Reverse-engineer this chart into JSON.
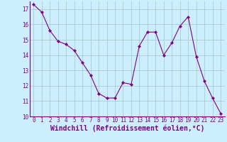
{
  "x": [
    0,
    1,
    2,
    3,
    4,
    5,
    6,
    7,
    8,
    9,
    10,
    11,
    12,
    13,
    14,
    15,
    16,
    17,
    18,
    19,
    20,
    21,
    22,
    23
  ],
  "y": [
    17.3,
    16.8,
    15.6,
    14.9,
    14.7,
    14.3,
    13.5,
    12.7,
    11.5,
    11.2,
    11.2,
    12.2,
    12.1,
    14.6,
    15.5,
    15.5,
    14.0,
    14.8,
    15.9,
    16.5,
    13.9,
    12.3,
    11.2,
    10.2
  ],
  "line_color": "#800080",
  "marker": "D",
  "marker_size": 2.2,
  "bg_color": "#cceeff",
  "grid_color": "#aacccc",
  "xlabel": "Windchill (Refroidissement éolien,°C)",
  "xlabel_color": "#800080",
  "ylim": [
    10,
    17.5
  ],
  "xlim": [
    -0.5,
    23.5
  ],
  "yticks": [
    10,
    11,
    12,
    13,
    14,
    15,
    16,
    17
  ],
  "xticks": [
    0,
    1,
    2,
    3,
    4,
    5,
    6,
    7,
    8,
    9,
    10,
    11,
    12,
    13,
    14,
    15,
    16,
    17,
    18,
    19,
    20,
    21,
    22,
    23
  ],
  "tick_color": "#800080",
  "tick_fontsize": 5.5,
  "xlabel_fontsize": 7.0,
  "spine_color": "#800080"
}
